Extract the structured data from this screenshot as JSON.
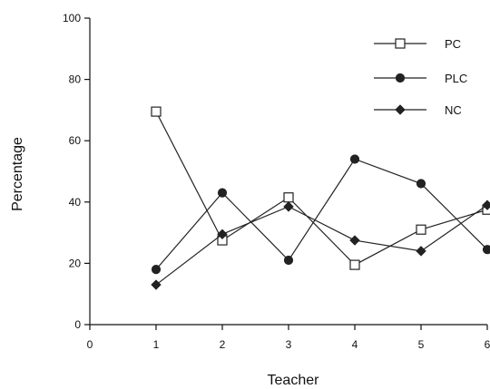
{
  "chart_data": {
    "type": "line",
    "xlabel": "Teacher",
    "ylabel": "Percentage",
    "xlim": [
      0,
      6
    ],
    "ylim": [
      0,
      100
    ],
    "x_ticks": [
      0,
      1,
      2,
      3,
      4,
      5,
      6
    ],
    "y_ticks": [
      0,
      20,
      40,
      60,
      80,
      100
    ],
    "grid": false,
    "legend_position": "top-right",
    "x": [
      1,
      2,
      3,
      4,
      5,
      6
    ],
    "series": [
      {
        "name": "PC",
        "marker": "open-square",
        "values": [
          69.5,
          27.5,
          41.5,
          19.5,
          31,
          37.5
        ]
      },
      {
        "name": "PLC",
        "marker": "filled-circle",
        "values": [
          18,
          43,
          21,
          54,
          46,
          24.5
        ]
      },
      {
        "name": "NC",
        "marker": "filled-diamond",
        "values": [
          13,
          29.5,
          38.5,
          27.5,
          24,
          39
        ]
      }
    ],
    "colors": {
      "line": "#222222",
      "axis": "#111111"
    }
  }
}
